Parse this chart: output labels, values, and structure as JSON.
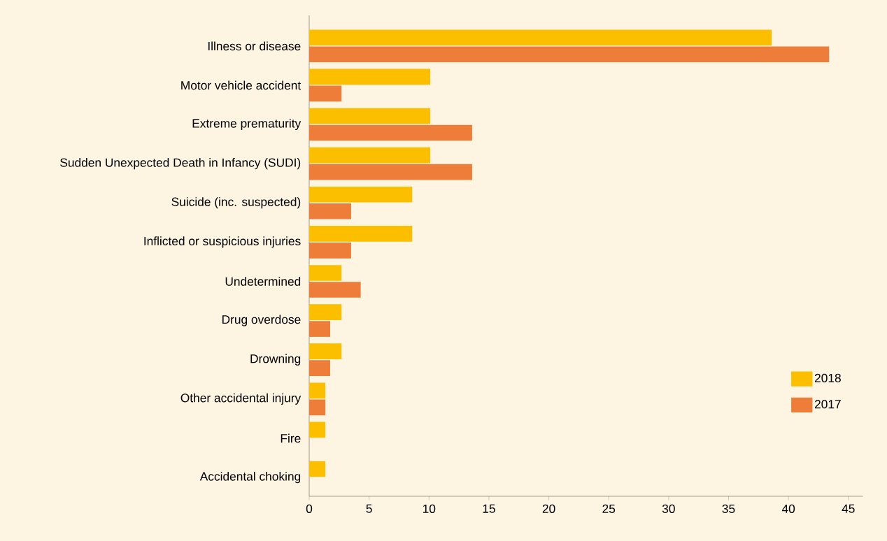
{
  "chart_data": {
    "type": "bar",
    "orientation": "horizontal",
    "categories": [
      "Illness or disease",
      "Motor vehicle accident",
      "Extreme prematurity",
      "Sudden Unexpected Death in Infancy (SUDI)",
      "Suicide (inc. suspected)",
      "Inflicted or suspicious injuries",
      "Undetermined",
      "Drug overdose",
      "Drowning",
      "Other accidental injury",
      "Fire",
      "Accidental choking"
    ],
    "series": [
      {
        "name": "2018",
        "color": "#fbbf00",
        "values": [
          38.6,
          10.1,
          10.1,
          10.1,
          8.6,
          8.6,
          2.7,
          2.7,
          2.7,
          1.35,
          1.35,
          1.35
        ]
      },
      {
        "name": "2017",
        "color": "#ef7d3a",
        "values": [
          43.4,
          2.7,
          13.6,
          13.6,
          3.5,
          3.5,
          4.3,
          1.75,
          1.75,
          1.35,
          0,
          0
        ]
      }
    ],
    "xlim": [
      0,
      46.2
    ],
    "xticks": [
      0,
      5,
      10,
      15,
      20,
      25,
      30,
      35,
      40,
      45
    ],
    "legend": "bottom right",
    "grid": false
  }
}
